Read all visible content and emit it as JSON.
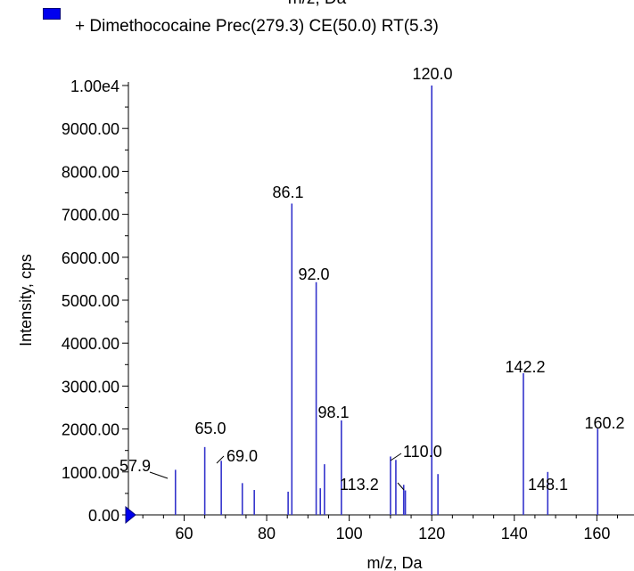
{
  "cutoff_text": "m/z, Da",
  "legend": {
    "swatch_color": "#0000ee",
    "label": "+ Dimethococaine Prec(279.3) CE(50.0) RT(5.3)"
  },
  "chart_data": {
    "type": "bar",
    "xlabel": "m/z, Da",
    "ylabel": "Intensity, cps",
    "xlim": [
      46.5,
      169
    ],
    "ylim": [
      0,
      10000
    ],
    "x_ticks": [
      60,
      80,
      100,
      120,
      140,
      160
    ],
    "x_tick_labels": [
      "60",
      "80",
      "100",
      "120",
      "140",
      "160"
    ],
    "y_ticks": [
      0,
      1000,
      2000,
      3000,
      4000,
      5000,
      6000,
      7000,
      8000,
      9000,
      10000
    ],
    "y_tick_labels": [
      "0.00",
      "1000.00",
      "2000.00",
      "3000.00",
      "4000.00",
      "5000.00",
      "6000.00",
      "7000.00",
      "8000.00",
      "9000.00",
      "1.00e4"
    ],
    "bar_color": "#3333cc",
    "series": [
      {
        "x": [
          57.9,
          65.0,
          69.0,
          74.1,
          77.0,
          85.2,
          86.1,
          92.0,
          93.0,
          94.0,
          98.1,
          110.0,
          111.3,
          113.2,
          113.6,
          120.0,
          121.5,
          142.2,
          148.1,
          160.2
        ],
        "values": [
          1050,
          1580,
          1260,
          740,
          580,
          540,
          7250,
          5420,
          620,
          1180,
          2200,
          1360,
          1280,
          700,
          570,
          10000,
          950,
          3300,
          1000,
          2010
        ]
      }
    ],
    "annotations": [
      "57.9",
      "65.0",
      "69.0",
      "86.1",
      "92.0",
      "98.1",
      "110.0",
      "113.2",
      "120.0",
      "142.2",
      "148.1",
      "160.2"
    ]
  }
}
